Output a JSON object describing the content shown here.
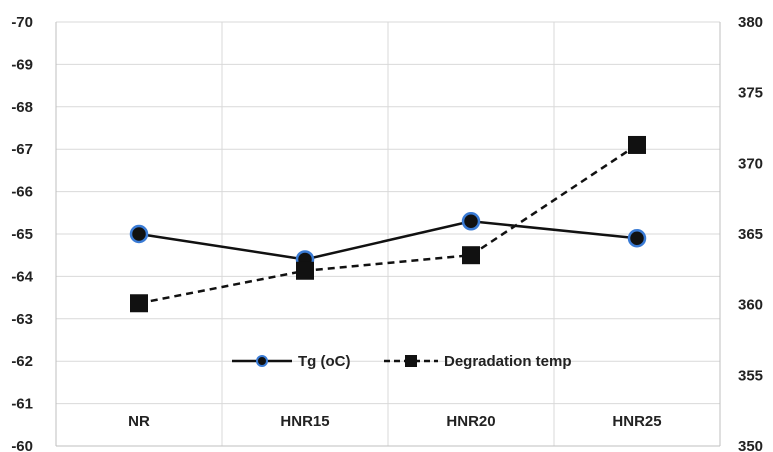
{
  "chart_data": {
    "type": "line",
    "categories": [
      "NR",
      "HNR15",
      "HNR20",
      "HNR25"
    ],
    "series": [
      {
        "name": "Tg (oC)",
        "axis": "left",
        "values": [
          -65.0,
          -64.4,
          -65.3,
          -64.9
        ],
        "style": "solid",
        "marker": "circle",
        "line_color": "#111111",
        "marker_fill": "#111111",
        "marker_edge": "#3a7bd5"
      },
      {
        "name": "Degradation temp",
        "axis": "right",
        "values": [
          360.1,
          362.4,
          363.5,
          371.3
        ],
        "style": "dashed",
        "marker": "square",
        "line_color": "#111111",
        "marker_fill": "#111111"
      }
    ],
    "left_axis": {
      "min": -70,
      "max": -60,
      "reversed": true,
      "ticks": [
        "-70",
        "-69",
        "-68",
        "-67",
        "-66",
        "-65",
        "-64",
        "-63",
        "-62",
        "-61",
        "-60"
      ]
    },
    "right_axis": {
      "min": 350,
      "max": 380,
      "ticks": [
        "380",
        "375",
        "370",
        "365",
        "360",
        "355",
        "350"
      ]
    },
    "grid": true,
    "legend": "bottom-center"
  }
}
